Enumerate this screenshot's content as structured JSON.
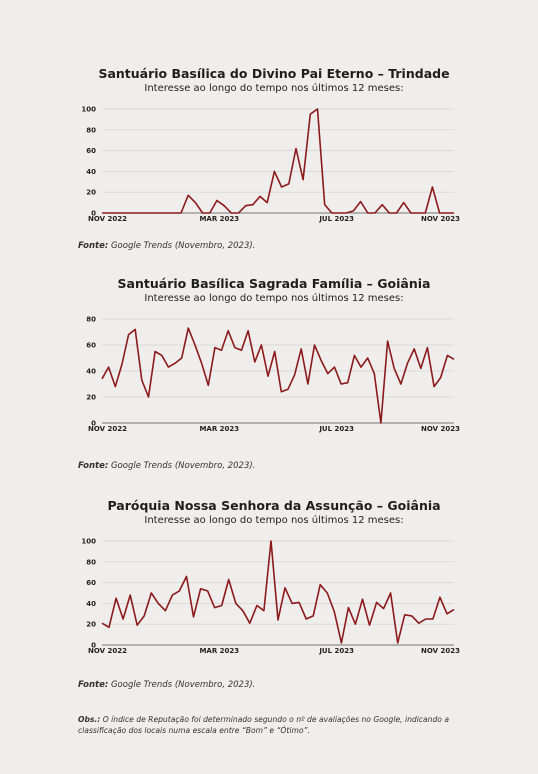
{
  "chart_data": [
    {
      "type": "line",
      "title": "Santuário Basílica do Divino Pai Eterno – Trindade",
      "subtitle": "Interesse ao longo do tempo nos últimos 12 meses:",
      "xticks": [
        "NOV 2022",
        "MAR 2023",
        "JUL 2023",
        "NOV 2023"
      ],
      "yticks": [
        0,
        20,
        40,
        60,
        80,
        100
      ],
      "ylim": [
        0,
        100
      ],
      "grid": true,
      "line_color": "#8c1a1a",
      "values": [
        0,
        0,
        0,
        0,
        0,
        0,
        0,
        0,
        0,
        0,
        0,
        0,
        17,
        10,
        0,
        0,
        12,
        7,
        0,
        0,
        7,
        8,
        16,
        10,
        40,
        25,
        28,
        62,
        32,
        95,
        100,
        8,
        0,
        0,
        0,
        2,
        11,
        0,
        0,
        8,
        0,
        0,
        10,
        0,
        0,
        0,
        25,
        0,
        0,
        0
      ]
    },
    {
      "type": "line",
      "title": "Santuário Basílica Sagrada Família – Goiânia",
      "subtitle": "Interesse ao longo do tempo nos últimos 12 meses:",
      "xticks": [
        "NOV 2022",
        "MAR 2023",
        "JUL 2023",
        "NOV 2023"
      ],
      "yticks": [
        0,
        20,
        40,
        60,
        80
      ],
      "ylim": [
        0,
        80
      ],
      "grid": true,
      "line_color": "#8c1a1a",
      "values": [
        34,
        43,
        28,
        45,
        68,
        72,
        33,
        20,
        55,
        52,
        43,
        46,
        50,
        73,
        60,
        46,
        29,
        58,
        56,
        71,
        58,
        56,
        71,
        47,
        60,
        36,
        55,
        24,
        26,
        37,
        57,
        30,
        60,
        48,
        38,
        43,
        30,
        31,
        52,
        43,
        50,
        38,
        0,
        63,
        42,
        30,
        46,
        57,
        42,
        58,
        28,
        35,
        52,
        49
      ]
    },
    {
      "type": "line",
      "title": "Paróquia Nossa Senhora da Assunção – Goiânia",
      "subtitle": "Interesse ao longo do tempo nos últimos 12 meses:",
      "xticks": [
        "NOV 2022",
        "MAR 2023",
        "JUL 2023",
        "NOV 2023"
      ],
      "yticks": [
        0,
        20,
        40,
        60,
        80,
        100
      ],
      "ylim": [
        0,
        100
      ],
      "grid": true,
      "line_color": "#8c1a1a",
      "values": [
        21,
        17,
        45,
        25,
        48,
        19,
        28,
        50,
        40,
        33,
        48,
        52,
        66,
        27,
        54,
        52,
        36,
        38,
        63,
        40,
        33,
        21,
        38,
        33,
        100,
        24,
        55,
        40,
        41,
        25,
        28,
        58,
        50,
        32,
        2,
        36,
        20,
        44,
        19,
        41,
        35,
        50,
        2,
        29,
        28,
        21,
        25,
        25,
        46,
        30,
        34
      ]
    }
  ],
  "fonte": {
    "label": "Fonte:",
    "text": " Google Trends (Novembro, 2023)."
  },
  "obs": {
    "label": "Obs.:",
    "text": " O índice de Reputação foi determinado segundo o nº de avaliações no Google, indicando a classificação dos locais numa escala entre “Bom” e “Ótimo”."
  }
}
